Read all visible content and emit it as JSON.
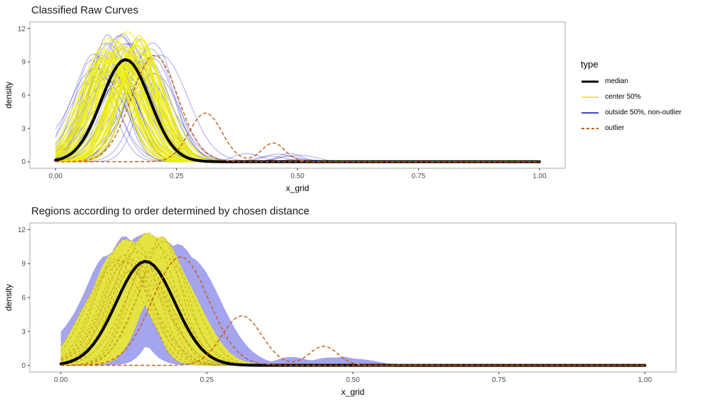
{
  "figure": {
    "background": "#ffffff"
  },
  "legend": {
    "title": "type",
    "entries": [
      {
        "label": "median",
        "color": "#000000",
        "width": 3,
        "dash": "solid"
      },
      {
        "label": "center 50%",
        "color": "#EDED12",
        "width": 2,
        "dash": "solid"
      },
      {
        "label": "outside 50%, non-outlier",
        "color": "#4343D0",
        "width": 2,
        "dash": "solid"
      },
      {
        "label": "outlier",
        "color": "#C75C10",
        "width": 2,
        "dash": "dashed"
      }
    ]
  },
  "curve_model": {
    "x_grid": {
      "start": 0,
      "end": 1,
      "step": 0.008
    },
    "median": {
      "color": "#000000",
      "width": 4,
      "components": [
        {
          "mean": 0.145,
          "sd": 0.05,
          "amp": 9.2
        }
      ]
    },
    "families": {
      "outside": {
        "label": "outside 50%, non-outlier",
        "color": "#4343D0",
        "opacity": 0.42,
        "width": 1.1,
        "n": 40,
        "seed": 20,
        "mean_range": [
          0.07,
          0.22
        ],
        "sd_range": [
          0.032,
          0.062
        ],
        "amp_range": [
          7.2,
          11.4
        ],
        "wobble": [
          0.04,
          0.1
        ],
        "tail_prob": 0.15,
        "tail_mean_range": [
          0.38,
          0.55
        ],
        "tail_sd_range": [
          0.02,
          0.04
        ],
        "tail_amp_range": [
          0.2,
          0.8
        ]
      },
      "center": {
        "label": "center 50%",
        "color": "#EDED12",
        "opacity": 0.85,
        "width": 1.2,
        "n": 55,
        "seed": 8,
        "mean_range": [
          0.1,
          0.19
        ],
        "sd_range": [
          0.034,
          0.056
        ],
        "amp_range": [
          8.4,
          11.0
        ],
        "wobble": [
          0.04,
          0.1
        ],
        "tail_prob": 0
      }
    },
    "outliers": {
      "label": "outlier",
      "color": "#C75C10",
      "width": 1.4,
      "dash": "5,3",
      "curves": [
        {
          "components": [
            {
              "mean": 0.205,
              "sd": 0.048,
              "amp": 9.6
            }
          ]
        },
        {
          "components": [
            {
              "mean": 0.31,
              "sd": 0.034,
              "amp": 4.4
            },
            {
              "mean": 0.45,
              "sd": 0.024,
              "amp": 1.7
            }
          ]
        }
      ]
    }
  },
  "chart_data": [
    {
      "type": "line",
      "title": "Classified Raw Curves",
      "xlabel": "x_grid",
      "ylabel": "density",
      "xlim": [
        0,
        1
      ],
      "ylim": [
        0,
        12
      ],
      "xticks": [
        0,
        0.25,
        0.5,
        0.75,
        1
      ],
      "xtick_labels": [
        "0.00",
        "0.25",
        "0.50",
        "0.75",
        "1.00"
      ],
      "yticks": [
        0,
        3,
        6,
        9,
        12
      ],
      "ytick_labels": [
        "0",
        "3",
        "6",
        "9",
        "12"
      ],
      "grid": false,
      "legend_position": "right",
      "series_source": "curve_model",
      "layers": [
        {
          "kind": "family",
          "family": "outside"
        },
        {
          "kind": "family",
          "family": "center"
        },
        {
          "kind": "median"
        },
        {
          "kind": "outliers"
        }
      ]
    },
    {
      "type": "area",
      "title": "Regions according to order determined by chosen distance",
      "xlabel": "x_grid",
      "ylabel": "density",
      "xlim": [
        0,
        1
      ],
      "ylim": [
        0,
        12
      ],
      "xticks": [
        0,
        0.25,
        0.5,
        0.75,
        1
      ],
      "xtick_labels": [
        "0.00",
        "0.25",
        "0.50",
        "0.75",
        "1.00"
      ],
      "yticks": [
        0,
        3,
        6,
        9,
        12
      ],
      "ytick_labels": [
        "0",
        "3",
        "6",
        "9",
        "12"
      ],
      "grid": false,
      "legend_position": "none",
      "series_source": "curve_model",
      "layers": [
        {
          "kind": "band",
          "name": "outside-50-band",
          "families": [
            "outside",
            "center"
          ],
          "include_median": true,
          "color": "#8686E9",
          "opacity": 0.75
        },
        {
          "kind": "band",
          "name": "center-50-band",
          "families": [
            "center"
          ],
          "include_median": true,
          "color": "#E8E833",
          "opacity": 0.92
        },
        {
          "kind": "family-sample",
          "family": "center",
          "every": 3,
          "color": "#B8860B",
          "opacity": 0.55,
          "width": 1,
          "dash": "4,3"
        },
        {
          "kind": "median"
        },
        {
          "kind": "outliers"
        }
      ]
    }
  ]
}
